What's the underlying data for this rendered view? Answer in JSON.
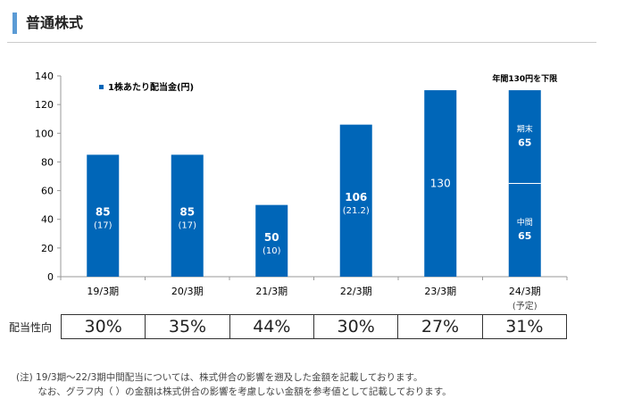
{
  "header": {
    "title": "普通株式"
  },
  "chart_data": {
    "type": "bar",
    "categories": [
      "19/3期",
      "20/3期",
      "21/3期",
      "22/3期",
      "23/3期",
      "24/3期"
    ],
    "category_sublabels": [
      "",
      "",
      "",
      "",
      "",
      "(予定)"
    ],
    "legend": "1株あたり配当金(円)",
    "legend_position": "top-left",
    "values": [
      85,
      85,
      50,
      106,
      130,
      130
    ],
    "value_labels": [
      "85",
      "85",
      "50",
      "106",
      "130",
      ""
    ],
    "sub_labels": [
      "(17)",
      "(17)",
      "(10)",
      "(21.2)",
      "",
      ""
    ],
    "stacked_last": {
      "top_label": "期末",
      "top_value": 65,
      "bottom_label": "中間",
      "bottom_value": 65
    },
    "annotation": "年間130円を下限",
    "yticks": [
      0,
      20,
      40,
      60,
      80,
      100,
      120,
      140
    ],
    "ylim": [
      0,
      140
    ],
    "grid": false,
    "color": "#0066b8"
  },
  "payout": {
    "label": "配当性向",
    "values": [
      "30%",
      "35%",
      "44%",
      "30%",
      "27%",
      "31%"
    ]
  },
  "notes": [
    "(注) 19/3期～22/3期中間配当については、株式併合の影響を遡及した金額を記載しております。",
    "　　 なお、グラフ内（ ）の金額は株式併合の影響を考慮しない金額を参考値として記載しております。"
  ]
}
